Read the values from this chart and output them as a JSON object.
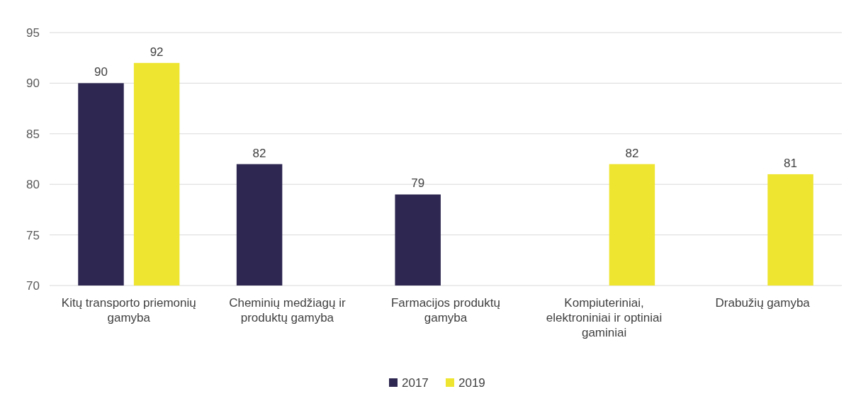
{
  "chart_data": {
    "type": "bar",
    "categories": [
      "Kitų transporto priemonių gamyba",
      "Cheminių medžiagų ir produktų gamyba",
      "Farmacijos produktų gamyba",
      "Kompiuteriniai, elektroniniai ir optiniai gaminiai",
      "Drabužių gamyba"
    ],
    "series": [
      {
        "name": "2017",
        "color": "#2e2751",
        "values": [
          90,
          82,
          79,
          null,
          null
        ]
      },
      {
        "name": "2019",
        "color": "#ede52f",
        "values": [
          92,
          null,
          null,
          82,
          81
        ]
      }
    ],
    "ylim": [
      70,
      95
    ],
    "yticks": [
      70,
      75,
      80,
      85,
      90,
      95
    ],
    "grid": "y",
    "legend": "bottom",
    "data_labels": true
  }
}
